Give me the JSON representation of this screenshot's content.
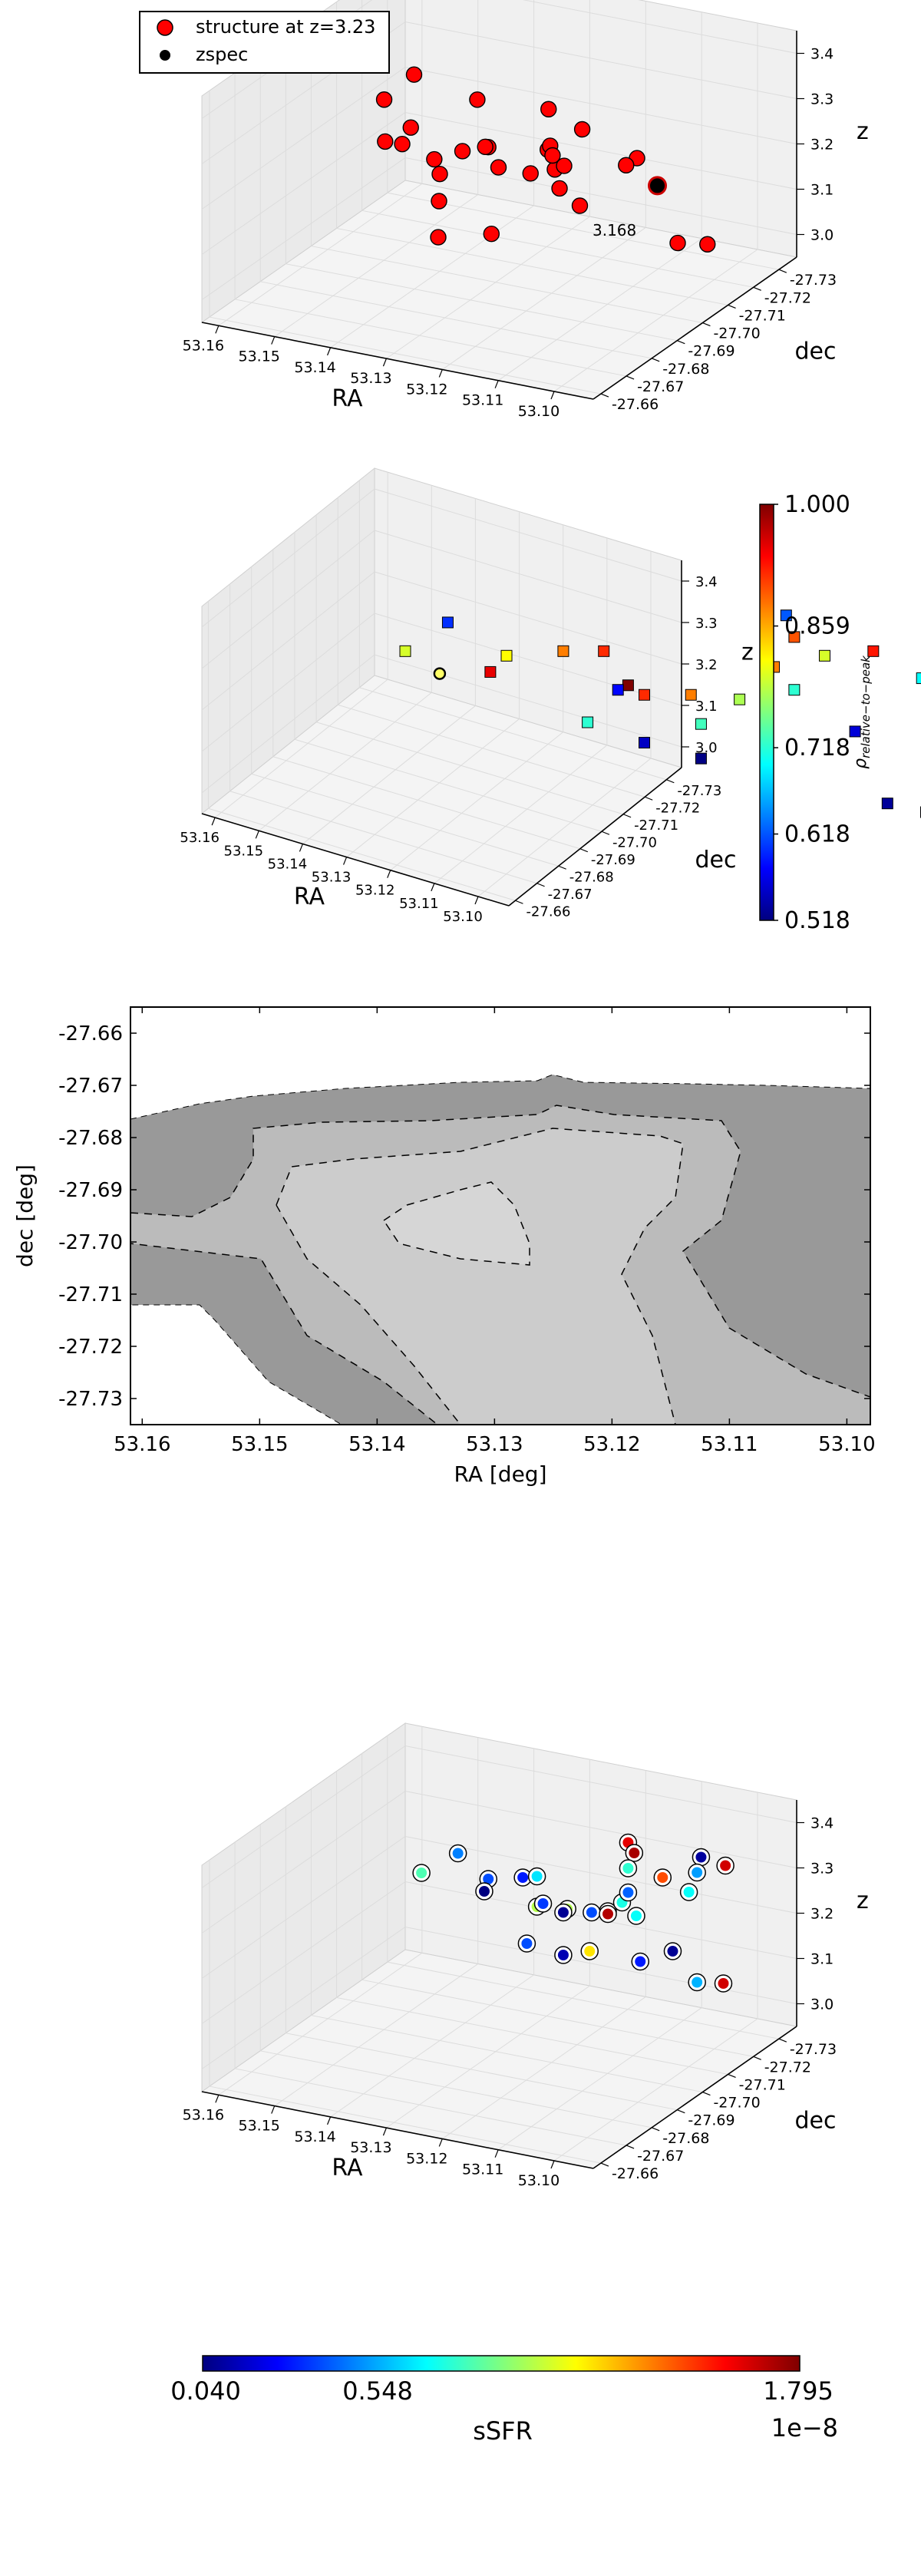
{
  "chart_data": [
    {
      "type": "scatter3d",
      "legend": {
        "location": "top-left",
        "entries": [
          {
            "label": "structure at z=3.23",
            "color": "#ff0000"
          },
          {
            "label": "zspec",
            "color": "#000000"
          }
        ]
      },
      "xlabel": "RA",
      "ylabel": "dec",
      "zlabel": "z",
      "xticks": [
        "53.16",
        "53.15",
        "53.14",
        "53.13",
        "53.12",
        "53.11",
        "53.10"
      ],
      "yticks": [
        "-27.73",
        "-27.72",
        "-27.71",
        "-27.70",
        "-27.69",
        "-27.68",
        "-27.67",
        "-27.66"
      ],
      "zticks": [
        "3.0",
        "3.1",
        "3.2",
        "3.3",
        "3.4"
      ],
      "annotation": "3.168",
      "series": [
        {
          "name": "structure at z=3.23",
          "color": "#ff0000",
          "points": [
            [
              0.18,
              0.55,
              3.3
            ],
            [
              0.22,
              0.62,
              3.34
            ],
            [
              0.25,
              0.42,
              3.26
            ],
            [
              0.3,
              0.45,
              3.29
            ],
            [
              0.33,
              0.35,
              3.29
            ],
            [
              0.34,
              0.7,
              3.28
            ],
            [
              0.36,
              0.45,
              3.23
            ],
            [
              0.38,
              0.55,
              3.22
            ],
            [
              0.4,
              0.4,
              3.22
            ],
            [
              0.42,
              0.6,
              3.22
            ],
            [
              0.45,
              0.3,
              3.2
            ],
            [
              0.45,
              0.75,
              3.12
            ],
            [
              0.48,
              0.5,
              3.07
            ],
            [
              0.5,
              0.2,
              3.16
            ],
            [
              0.52,
              0.7,
              3.2
            ],
            [
              0.55,
              0.4,
              3.26
            ],
            [
              0.55,
              0.8,
              3.05
            ],
            [
              0.6,
              0.55,
              3.35
            ],
            [
              0.62,
              0.2,
              3.38
            ],
            [
              0.63,
              0.5,
              3.29
            ],
            [
              0.66,
              0.6,
              3.3
            ],
            [
              0.68,
              0.45,
              3.22
            ],
            [
              0.72,
              0.35,
              3.3
            ],
            [
              0.74,
              0.3,
              3.35
            ],
            [
              0.78,
              0.28,
              3.34
            ],
            [
              0.8,
              0.6,
              3.26
            ],
            [
              0.85,
              0.45,
              3.3
            ],
            [
              0.8,
              0.8,
              3.01
            ],
            [
              0.85,
              0.85,
              3.0
            ]
          ]
        },
        {
          "name": "zspec",
          "color": "#000000",
          "points": [
            [
              0.8,
              0.7,
              3.168
            ]
          ]
        }
      ]
    },
    {
      "type": "scatter3d",
      "xlabel": "RA",
      "ylabel": "dec",
      "zlabel": "z",
      "xticks": [
        "53.16",
        "53.15",
        "53.14",
        "53.13",
        "53.12",
        "53.11",
        "53.10"
      ],
      "yticks": [
        "-27.73",
        "-27.72",
        "-27.71",
        "-27.70",
        "-27.69",
        "-27.68",
        "-27.67",
        "-27.66"
      ],
      "zticks": [
        "3.0",
        "3.1",
        "3.2",
        "3.3",
        "3.4"
      ],
      "colorbar": {
        "label": "ρ_relative-to-peak",
        "ticks": [
          "0.518",
          "0.618",
          "0.718",
          "0.859",
          "1.000"
        ],
        "range": [
          0.518,
          1.0
        ]
      },
      "points": [
        {
          "sx": 0.221,
          "sy": 0.284,
          "c": 0.6
        },
        {
          "sx": 0.2,
          "sy": 0.353,
          "c": 0.8
        },
        {
          "sx": 0.25,
          "sy": 0.364,
          "c": 0.82
        },
        {
          "sx": 0.278,
          "sy": 0.353,
          "c": 0.88
        },
        {
          "sx": 0.298,
          "sy": 0.353,
          "c": 0.92
        },
        {
          "sx": 0.242,
          "sy": 0.403,
          "c": 0.95
        },
        {
          "sx": 0.31,
          "sy": 0.435,
          "c": 1.0
        },
        {
          "sx": 0.305,
          "sy": 0.446,
          "c": 0.58
        },
        {
          "sx": 0.318,
          "sy": 0.458,
          "c": 0.92
        },
        {
          "sx": 0.341,
          "sy": 0.458,
          "c": 0.88
        },
        {
          "sx": 0.365,
          "sy": 0.469,
          "c": 0.78
        },
        {
          "sx": 0.29,
          "sy": 0.524,
          "c": 0.72
        },
        {
          "sx": 0.318,
          "sy": 0.573,
          "c": 0.55
        },
        {
          "sx": 0.346,
          "sy": 0.528,
          "c": 0.73
        },
        {
          "sx": 0.346,
          "sy": 0.611,
          "c": 0.52
        },
        {
          "sx": 0.382,
          "sy": 0.391,
          "c": 0.88
        },
        {
          "sx": 0.388,
          "sy": 0.267,
          "c": 0.62
        },
        {
          "sx": 0.392,
          "sy": 0.319,
          "c": 0.9
        },
        {
          "sx": 0.407,
          "sy": 0.364,
          "c": 0.8
        },
        {
          "sx": 0.392,
          "sy": 0.446,
          "c": 0.72
        },
        {
          "sx": 0.422,
          "sy": 0.546,
          "c": 0.56
        },
        {
          "sx": 0.431,
          "sy": 0.353,
          "c": 0.93
        },
        {
          "sx": 0.466,
          "sy": 0.319,
          "c": 0.95
        },
        {
          "sx": 0.47,
          "sy": 0.381,
          "c": 0.85
        },
        {
          "sx": 0.455,
          "sy": 0.418,
          "c": 0.7
        },
        {
          "sx": 0.486,
          "sy": 0.353,
          "c": 0.78
        },
        {
          "sx": 0.438,
          "sy": 0.719,
          "c": 0.53
        },
        {
          "sx": 0.457,
          "sy": 0.74,
          "c": 0.56
        }
      ],
      "zspec_point": {
        "sx": 0.217,
        "sy": 0.407
      }
    },
    {
      "type": "contour",
      "xlabel": "RA [deg]",
      "ylabel": "dec [deg]",
      "xlim": [
        53.161,
        53.098
      ],
      "ylim": [
        -27.735,
        -27.655
      ],
      "xticks": [
        "53.16",
        "53.15",
        "53.14",
        "53.13",
        "53.12",
        "53.11",
        "53.10"
      ],
      "yticks": [
        "-27.66",
        "-27.67",
        "-27.68",
        "-27.69",
        "-27.70",
        "-27.71",
        "-27.72",
        "-27.73"
      ],
      "levels": [
        {
          "name": "outer",
          "color": "#999999"
        },
        {
          "name": "middle",
          "color": "#bbbbbb"
        },
        {
          "name": "inner",
          "color": "#cccccc"
        }
      ]
    },
    {
      "type": "scatter3d",
      "xlabel": "RA",
      "ylabel": "dec",
      "zlabel": "z",
      "xticks": [
        "53.16",
        "53.15",
        "53.14",
        "53.13",
        "53.12",
        "53.11",
        "53.10"
      ],
      "yticks": [
        "-27.73",
        "-27.72",
        "-27.71",
        "-27.70",
        "-27.69",
        "-27.68",
        "-27.67",
        "-27.66"
      ],
      "zticks": [
        "3.0",
        "3.1",
        "3.2",
        "3.3",
        "3.4"
      ],
      "points": [
        {
          "sx": 0.208,
          "sy": 0.424,
          "c": 0.45
        },
        {
          "sx": 0.226,
          "sy": 0.373,
          "c": 0.25
        },
        {
          "sx": 0.241,
          "sy": 0.44,
          "c": 0.2
        },
        {
          "sx": 0.239,
          "sy": 0.472,
          "c": 0.0
        },
        {
          "sx": 0.258,
          "sy": 0.436,
          "c": 0.15
        },
        {
          "sx": 0.265,
          "sy": 0.433,
          "c": 0.35
        },
        {
          "sx": 0.265,
          "sy": 0.512,
          "c": 0.55
        },
        {
          "sx": 0.268,
          "sy": 0.504,
          "c": 0.18
        },
        {
          "sx": 0.28,
          "sy": 0.518,
          "c": 0.55
        },
        {
          "sx": 0.278,
          "sy": 0.527,
          "c": 0.02
        },
        {
          "sx": 0.3,
          "sy": 0.524,
          "c": 0.98
        },
        {
          "sx": 0.292,
          "sy": 0.527,
          "c": 0.2
        },
        {
          "sx": 0.3,
          "sy": 0.531,
          "c": 0.95
        },
        {
          "sx": 0.26,
          "sy": 0.608,
          "c": 0.2
        },
        {
          "sx": 0.291,
          "sy": 0.628,
          "c": 0.65
        },
        {
          "sx": 0.278,
          "sy": 0.638,
          "c": 0.05
        },
        {
          "sx": 0.316,
          "sy": 0.655,
          "c": 0.15
        },
        {
          "sx": 0.307,
          "sy": 0.501,
          "c": 0.4
        },
        {
          "sx": 0.31,
          "sy": 0.475,
          "c": 0.22
        },
        {
          "sx": 0.314,
          "sy": 0.536,
          "c": 0.38
        },
        {
          "sx": 0.31,
          "sy": 0.345,
          "c": 0.9
        },
        {
          "sx": 0.313,
          "sy": 0.372,
          "c": 0.96
        },
        {
          "sx": 0.31,
          "sy": 0.412,
          "c": 0.42
        },
        {
          "sx": 0.327,
          "sy": 0.436,
          "c": 0.8
        },
        {
          "sx": 0.346,
          "sy": 0.383,
          "c": 0.03
        },
        {
          "sx": 0.344,
          "sy": 0.423,
          "c": 0.28
        },
        {
          "sx": 0.34,
          "sy": 0.474,
          "c": 0.38
        },
        {
          "sx": 0.358,
          "sy": 0.405,
          "c": 0.92
        },
        {
          "sx": 0.332,
          "sy": 0.628,
          "c": 0.02
        },
        {
          "sx": 0.344,
          "sy": 0.709,
          "c": 0.3
        },
        {
          "sx": 0.357,
          "sy": 0.712,
          "c": 0.92
        }
      ]
    },
    {
      "type": "colorbar",
      "label": "sSFR",
      "ticks": [
        "0.040",
        "0.548",
        "1.795"
      ],
      "range": [
        0.04,
        1.795
      ],
      "offset": "1e−8"
    }
  ]
}
